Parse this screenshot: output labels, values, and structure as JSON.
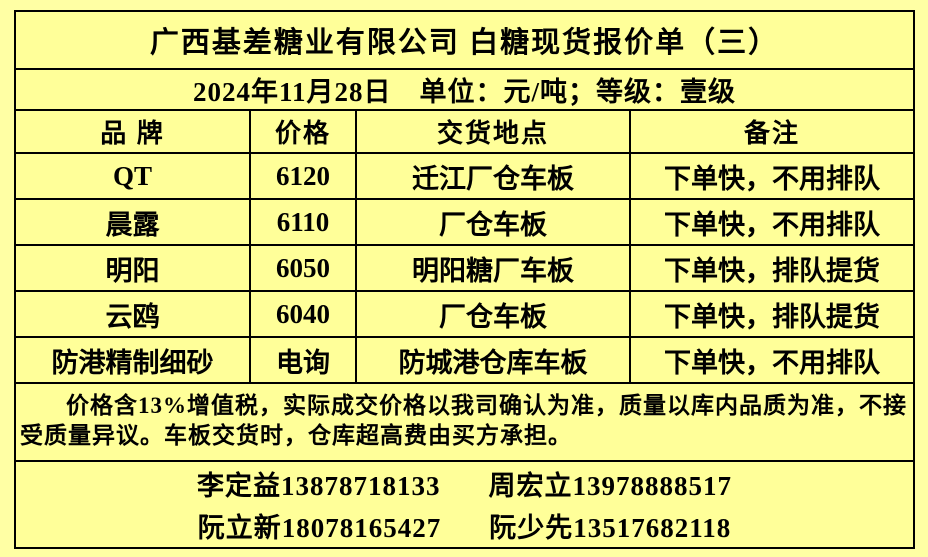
{
  "colors": {
    "page_background": "#ffffa4",
    "sheet_background": "#ffff99",
    "border": "#000000",
    "text": "#000000"
  },
  "title": "广西基差糖业有限公司 白糖现货报价单（三）",
  "meta": {
    "date": "2024年11月28日",
    "unit_grade": "单位：元/吨；等级：壹级"
  },
  "table": {
    "headers": {
      "brand": "品 牌",
      "price": "价格",
      "location": "交货地点",
      "remark": "备注"
    },
    "rows": [
      {
        "brand": "QT",
        "price": "6120",
        "location": "迁江厂仓车板",
        "remark": "下单快，不用排队"
      },
      {
        "brand": "晨露",
        "price": "6110",
        "location": "厂仓车板",
        "remark": "下单快，不用排队"
      },
      {
        "brand": "明阳",
        "price": "6050",
        "location": "明阳糖厂车板",
        "remark": "下单快，排队提货"
      },
      {
        "brand": "云鸥",
        "price": "6040",
        "location": "厂仓车板",
        "remark": "下单快，排队提货"
      },
      {
        "brand": "防港精制细砂",
        "price": "电询",
        "location": "防城港仓库车板",
        "remark": "下单快，不用排队"
      }
    ]
  },
  "note": "价格含13%增值税，实际成交价格以我司确认为准，质量以库内品质为准，不接受质量异议。车板交货时，仓库超高费由买方承担。",
  "contacts": {
    "line1": [
      {
        "name": "李定益",
        "phone": "13878718133"
      },
      {
        "name": "周宏立",
        "phone": "13978888517"
      }
    ],
    "line2": [
      {
        "name": "阮立新",
        "phone": "18078165427"
      },
      {
        "name": "阮少先",
        "phone": "13517682118"
      }
    ]
  }
}
